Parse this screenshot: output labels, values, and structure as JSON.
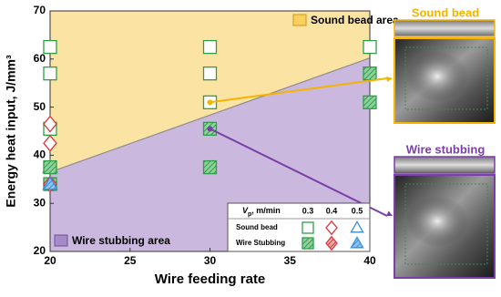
{
  "chart_data": {
    "type": "scatter",
    "xlabel": "Wire feeding rate",
    "ylabel": "Energy heat  input, J/mm³",
    "xlim": [
      20,
      40
    ],
    "xticks": [
      20,
      25,
      30,
      35,
      40
    ],
    "ylim": [
      20,
      70
    ],
    "yticks": [
      20,
      30,
      40,
      50,
      60,
      70
    ],
    "boundary": {
      "x": [
        20,
        40
      ],
      "y": [
        36.5,
        60.2
      ],
      "color": "#8c8c8c"
    },
    "regions": [
      {
        "label": "Sound bead area",
        "color": "#fbe3a3"
      },
      {
        "label": "Wire stubbing area",
        "color": "#cbb8df"
      }
    ],
    "legend_title": {
      "symbol": "V",
      "subscript": "p",
      "unit": ", m/min"
    },
    "speeds": [
      "0.3",
      "0.4",
      "0.5"
    ],
    "markers": [
      "square",
      "diamond",
      "triangle"
    ],
    "colors": [
      "#2e9e48",
      "#d9363e",
      "#3a8fd9"
    ],
    "series": [
      {
        "name": "Sound bead",
        "fill": "open",
        "points": [
          {
            "x": [
              20,
              20,
              20,
              30,
              30,
              30,
              40
            ],
            "y": [
              62.5,
              57,
              45.5,
              62.5,
              57,
              51,
              62.5
            ]
          },
          {
            "x": [
              20,
              20
            ],
            "y": [
              46.5,
              42.5
            ]
          },
          {
            "x": [
              20
            ],
            "y": [
              37.5
            ]
          }
        ]
      },
      {
        "name": "Wire Stubbing",
        "fill": "hatch",
        "points": [
          {
            "x": [
              20,
              20,
              30,
              30,
              40,
              40
            ],
            "y": [
              37.5,
              34,
              45.5,
              37.5,
              57,
              51
            ]
          },
          {
            "x": [
              20
            ],
            "y": [
              34
            ]
          },
          {
            "x": [
              20
            ],
            "y": [
              34
            ]
          }
        ]
      }
    ],
    "photos": [
      {
        "label": "Sound bead",
        "color": "#f5b400"
      },
      {
        "label": "Wire stubbing",
        "color": "#7a3fa8"
      }
    ]
  }
}
